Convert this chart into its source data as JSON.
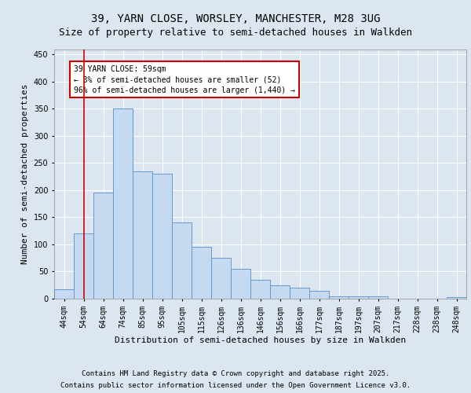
{
  "title_line1": "39, YARN CLOSE, WORSLEY, MANCHESTER, M28 3UG",
  "title_line2": "Size of property relative to semi-detached houses in Walkden",
  "xlabel": "Distribution of semi-detached houses by size in Walkden",
  "ylabel": "Number of semi-detached properties",
  "categories": [
    "44sqm",
    "54sqm",
    "64sqm",
    "74sqm",
    "85sqm",
    "95sqm",
    "105sqm",
    "115sqm",
    "126sqm",
    "136sqm",
    "146sqm",
    "156sqm",
    "166sqm",
    "177sqm",
    "187sqm",
    "197sqm",
    "207sqm",
    "217sqm",
    "228sqm",
    "238sqm",
    "248sqm"
  ],
  "values": [
    18,
    120,
    195,
    350,
    235,
    230,
    140,
    95,
    75,
    55,
    35,
    25,
    20,
    15,
    5,
    5,
    5,
    0,
    0,
    0,
    3
  ],
  "bar_color": "#c5d9f1",
  "bar_edge_color": "#6699cc",
  "annotation_text": "39 YARN CLOSE: 59sqm\n← 3% of semi-detached houses are smaller (52)\n96% of semi-detached houses are larger (1,440) →",
  "annotation_box_color": "#ffffff",
  "annotation_edge_color": "#cc0000",
  "vline_color": "#cc0000",
  "vline_x": 1.0,
  "ylim": [
    0,
    460
  ],
  "yticks": [
    0,
    50,
    100,
    150,
    200,
    250,
    300,
    350,
    400,
    450
  ],
  "background_color": "#dce6f1",
  "footer_line1": "Contains HM Land Registry data © Crown copyright and database right 2025.",
  "footer_line2": "Contains public sector information licensed under the Open Government Licence v3.0.",
  "title_fontsize": 10,
  "subtitle_fontsize": 9,
  "axis_label_fontsize": 8,
  "tick_fontsize": 7,
  "annotation_fontsize": 7,
  "footer_fontsize": 6.5
}
